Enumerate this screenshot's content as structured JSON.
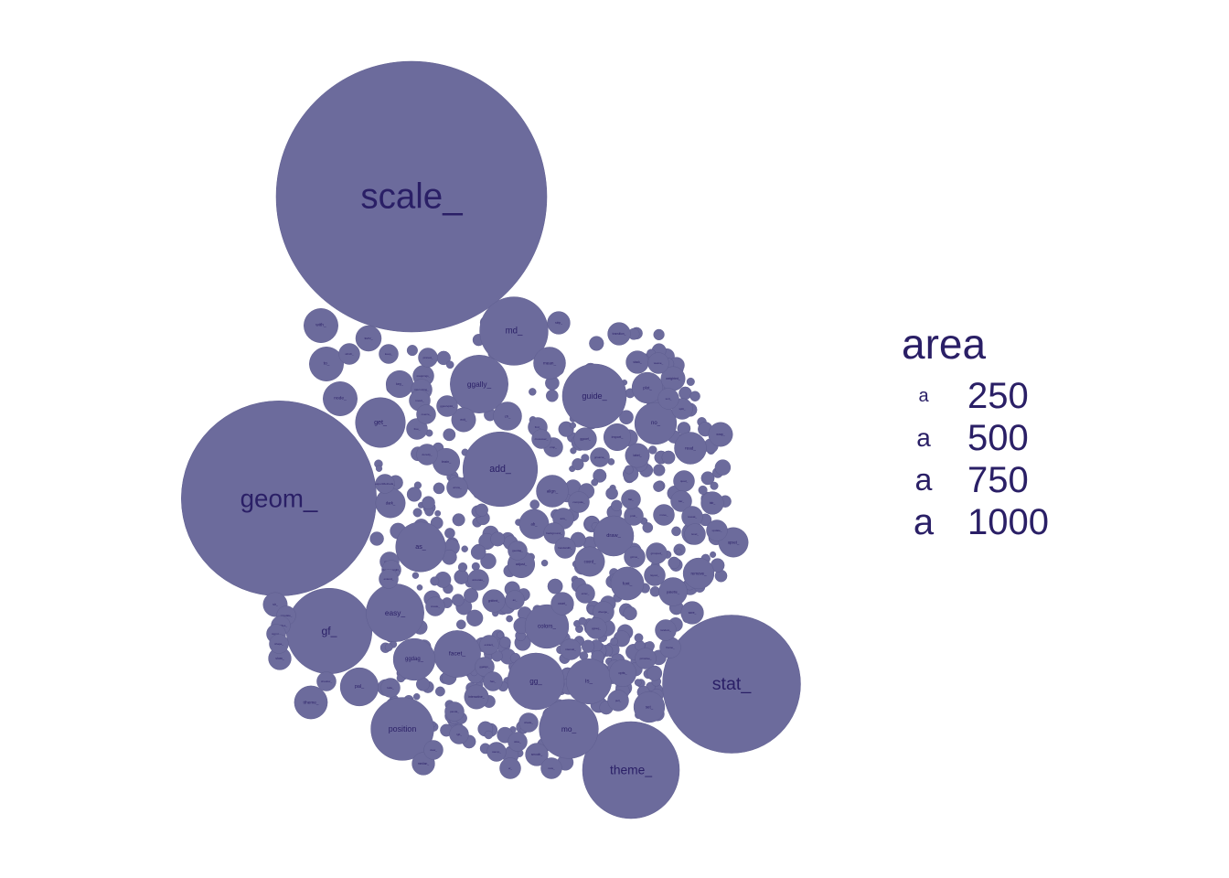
{
  "colors": {
    "bubble": "#6c6b9c",
    "label": "#2a1f66",
    "background": "#ffffff"
  },
  "legend": {
    "title": "area",
    "key_glyph": "a",
    "entries": [
      {
        "value": "250"
      },
      {
        "value": "500"
      },
      {
        "value": "750"
      },
      {
        "value": "1000"
      }
    ]
  },
  "chart_data": {
    "type": "bubble-pack",
    "size_legend_title": "area",
    "size_legend_breaks": [
      250,
      500,
      750,
      1000
    ],
    "bubbles": [
      {
        "label": "scale_",
        "area": 1000
      },
      {
        "label": "geom_",
        "area": 520
      },
      {
        "label": "stat_",
        "area": 260
      },
      {
        "label": "theme_",
        "area": 128
      },
      {
        "label": "gf_",
        "area": 100
      },
      {
        "label": "add_",
        "area": 76
      },
      {
        "label": "md_",
        "area": 64
      },
      {
        "label": "guide_",
        "area": 56
      },
      {
        "label": "position",
        "area": 54
      },
      {
        "label": "mo_",
        "area": 48
      },
      {
        "label": "ggally_",
        "area": 46
      },
      {
        "label": "easy_",
        "area": 46
      },
      {
        "label": "gg_",
        "area": 44
      },
      {
        "label": "as_",
        "area": 34
      },
      {
        "label": "get_",
        "area": 34
      },
      {
        "label": "facet_",
        "area": 30
      },
      {
        "label": "is_",
        "area": 28
      },
      {
        "label": "colors_",
        "area": 26
      },
      {
        "label": "no_",
        "area": 24
      },
      {
        "label": "ggdag_",
        "area": 24
      },
      {
        "label": "draw_",
        "area": 22
      },
      {
        "label": "pal_",
        "area": 20
      },
      {
        "label": "node_",
        "area": 16
      },
      {
        "label": "with_",
        "area": 16
      },
      {
        "label": "to_",
        "area": 16
      },
      {
        "label": "ttheme_",
        "area": 15
      },
      {
        "label": "font_",
        "area": 15
      },
      {
        "label": "align_",
        "area": 14
      },
      {
        "label": "mean_",
        "area": 14
      },
      {
        "label": "read_",
        "area": 14
      },
      {
        "label": "plot_",
        "area": 13
      },
      {
        "label": "remove_",
        "area": 13
      },
      {
        "label": "set_",
        "area": 13
      },
      {
        "label": "dark_",
        "area": 12
      },
      {
        "label": "ab_",
        "area": 12
      },
      {
        "label": "upset_",
        "area": 12
      },
      {
        "label": "coord_",
        "area": 12
      },
      {
        "label": "ch_",
        "area": 11
      },
      {
        "label": "palette_",
        "area": 11
      },
      {
        "label": "brain_",
        "area": 10
      },
      {
        "label": "import_",
        "area": 10
      },
      {
        "label": "opts_",
        "area": 10
      },
      {
        "label": "adjust_",
        "area": 10
      },
      {
        "label": "key_",
        "area": 10
      },
      {
        "label": "surv_",
        "area": 9
      },
      {
        "label": "sir_",
        "area": 8
      },
      {
        "label": "weighted_",
        "area": 8
      },
      {
        "label": "interactive_",
        "area": 8
      },
      {
        "label": "label_",
        "area": 8
      },
      {
        "label": "wrap_",
        "area": 8
      },
      {
        "label": "exit_",
        "area": 8
      },
      {
        "label": "show_",
        "area": 7
      },
      {
        "label": "median_",
        "area": 7
      },
      {
        "label": "smooth_",
        "area": 7
      },
      {
        "label": "count_",
        "area": 7
      },
      {
        "label": "stack_",
        "area": 7
      },
      {
        "label": "strip_",
        "area": 7
      },
      {
        "label": "transition_",
        "area": 7
      },
      {
        "label": "eval_",
        "area": 7
      },
      {
        "label": "tab_",
        "area": 7
      },
      {
        "label": "save_",
        "area": 7
      },
      {
        "label": "gridtext_",
        "area": 7
      },
      {
        "label": "ggcoef_",
        "area": 7
      },
      {
        "label": "which_",
        "area": 6
      },
      {
        "label": "w_",
        "area": 6
      },
      {
        "label": "new_",
        "area": 6
      },
      {
        "label": "pull_",
        "area": 6
      },
      {
        "label": "primitive_",
        "area": 6
      },
      {
        "label": "interval_",
        "area": 6
      },
      {
        "label": "weave_",
        "area": 6
      },
      {
        "label": "frame_",
        "area": 6
      },
      {
        "label": "split_",
        "area": 6
      },
      {
        "label": "sort_",
        "area": 6
      },
      {
        "label": "quad_",
        "area": 6
      },
      {
        "label": "layout_",
        "area": 6
      },
      {
        "label": "bar_",
        "area": 6
      },
      {
        "label": "move_",
        "area": 6
      },
      {
        "label": "reveal_",
        "area": 6
      },
      {
        "label": "level_",
        "area": 6
      },
      {
        "label": "update_",
        "area": 6
      },
      {
        "label": "grouped_",
        "area": 6
      },
      {
        "label": "gizmo_",
        "area": 6
      },
      {
        "label": "compute_",
        "area": 6
      },
      {
        "label": "axis_",
        "area": 6
      },
      {
        "label": "background_",
        "area": 6
      },
      {
        "label": "handwidth_",
        "area": 6
      },
      {
        "label": "diverge_",
        "area": 6
      },
      {
        "label": "random_",
        "area": 6
      },
      {
        "label": "ggseg_",
        "area": 6
      },
      {
        "label": "ggsurvplot_",
        "area": 6
      },
      {
        "label": "mappings_",
        "area": 6
      },
      {
        "label": "interesting_",
        "area": 6
      },
      {
        "label": "invert_",
        "area": 6
      },
      {
        "label": "free_",
        "area": 6
      },
      {
        "label": "density_",
        "area": 6
      },
      {
        "label": "arrow_",
        "area": 6
      },
      {
        "label": "annotate_",
        "area": 6
      },
      {
        "label": "custom_",
        "area": 5
      },
      {
        "label": "fivethirtyeight_",
        "area": 5
      },
      {
        "label": "extend_",
        "area": 5
      },
      {
        "label": "create_",
        "area": 5
      },
      {
        "label": "extract_",
        "area": 5
      },
      {
        "label": "ggalign_",
        "area": 5
      },
      {
        "label": "has_",
        "area": 5
      },
      {
        "label": "panda_",
        "area": 5
      },
      {
        "label": "rgb_",
        "area": 5
      },
      {
        "label": "shadow_",
        "area": 5
      },
      {
        "label": "shade_",
        "area": 5
      },
      {
        "label": "slice_",
        "area": 5
      },
      {
        "label": "stamp_",
        "area": 5
      },
      {
        "label": "view_",
        "area": 5
      },
      {
        "label": "simulate_",
        "area": 5
      },
      {
        "label": "simplifies_",
        "area": 5
      },
      {
        "label": "sigma_",
        "area": 5
      },
      {
        "label": "shape_",
        "area": 5
      },
      {
        "label": "exportMethods_",
        "area": 5
      },
      {
        "label": "av_",
        "area": 5
      },
      {
        "label": "enter_",
        "area": 5
      },
      {
        "label": "find_",
        "area": 5
      },
      {
        "label": "crop_",
        "area": 5
      },
      {
        "label": "prob_",
        "area": 5
      },
      {
        "label": "flat_",
        "area": 5
      },
      {
        "label": "gcoarse_",
        "area": 5
      },
      {
        "label": "crossover_",
        "area": 5
      },
      {
        "label": "pinned_",
        "area": 5
      },
      {
        "label": "coerce_",
        "area": 5
      },
      {
        "label": "keep_",
        "area": 5
      },
      {
        "label": "lode_",
        "area": 5
      },
      {
        "label": "geodag_",
        "area": 5
      }
    ]
  }
}
